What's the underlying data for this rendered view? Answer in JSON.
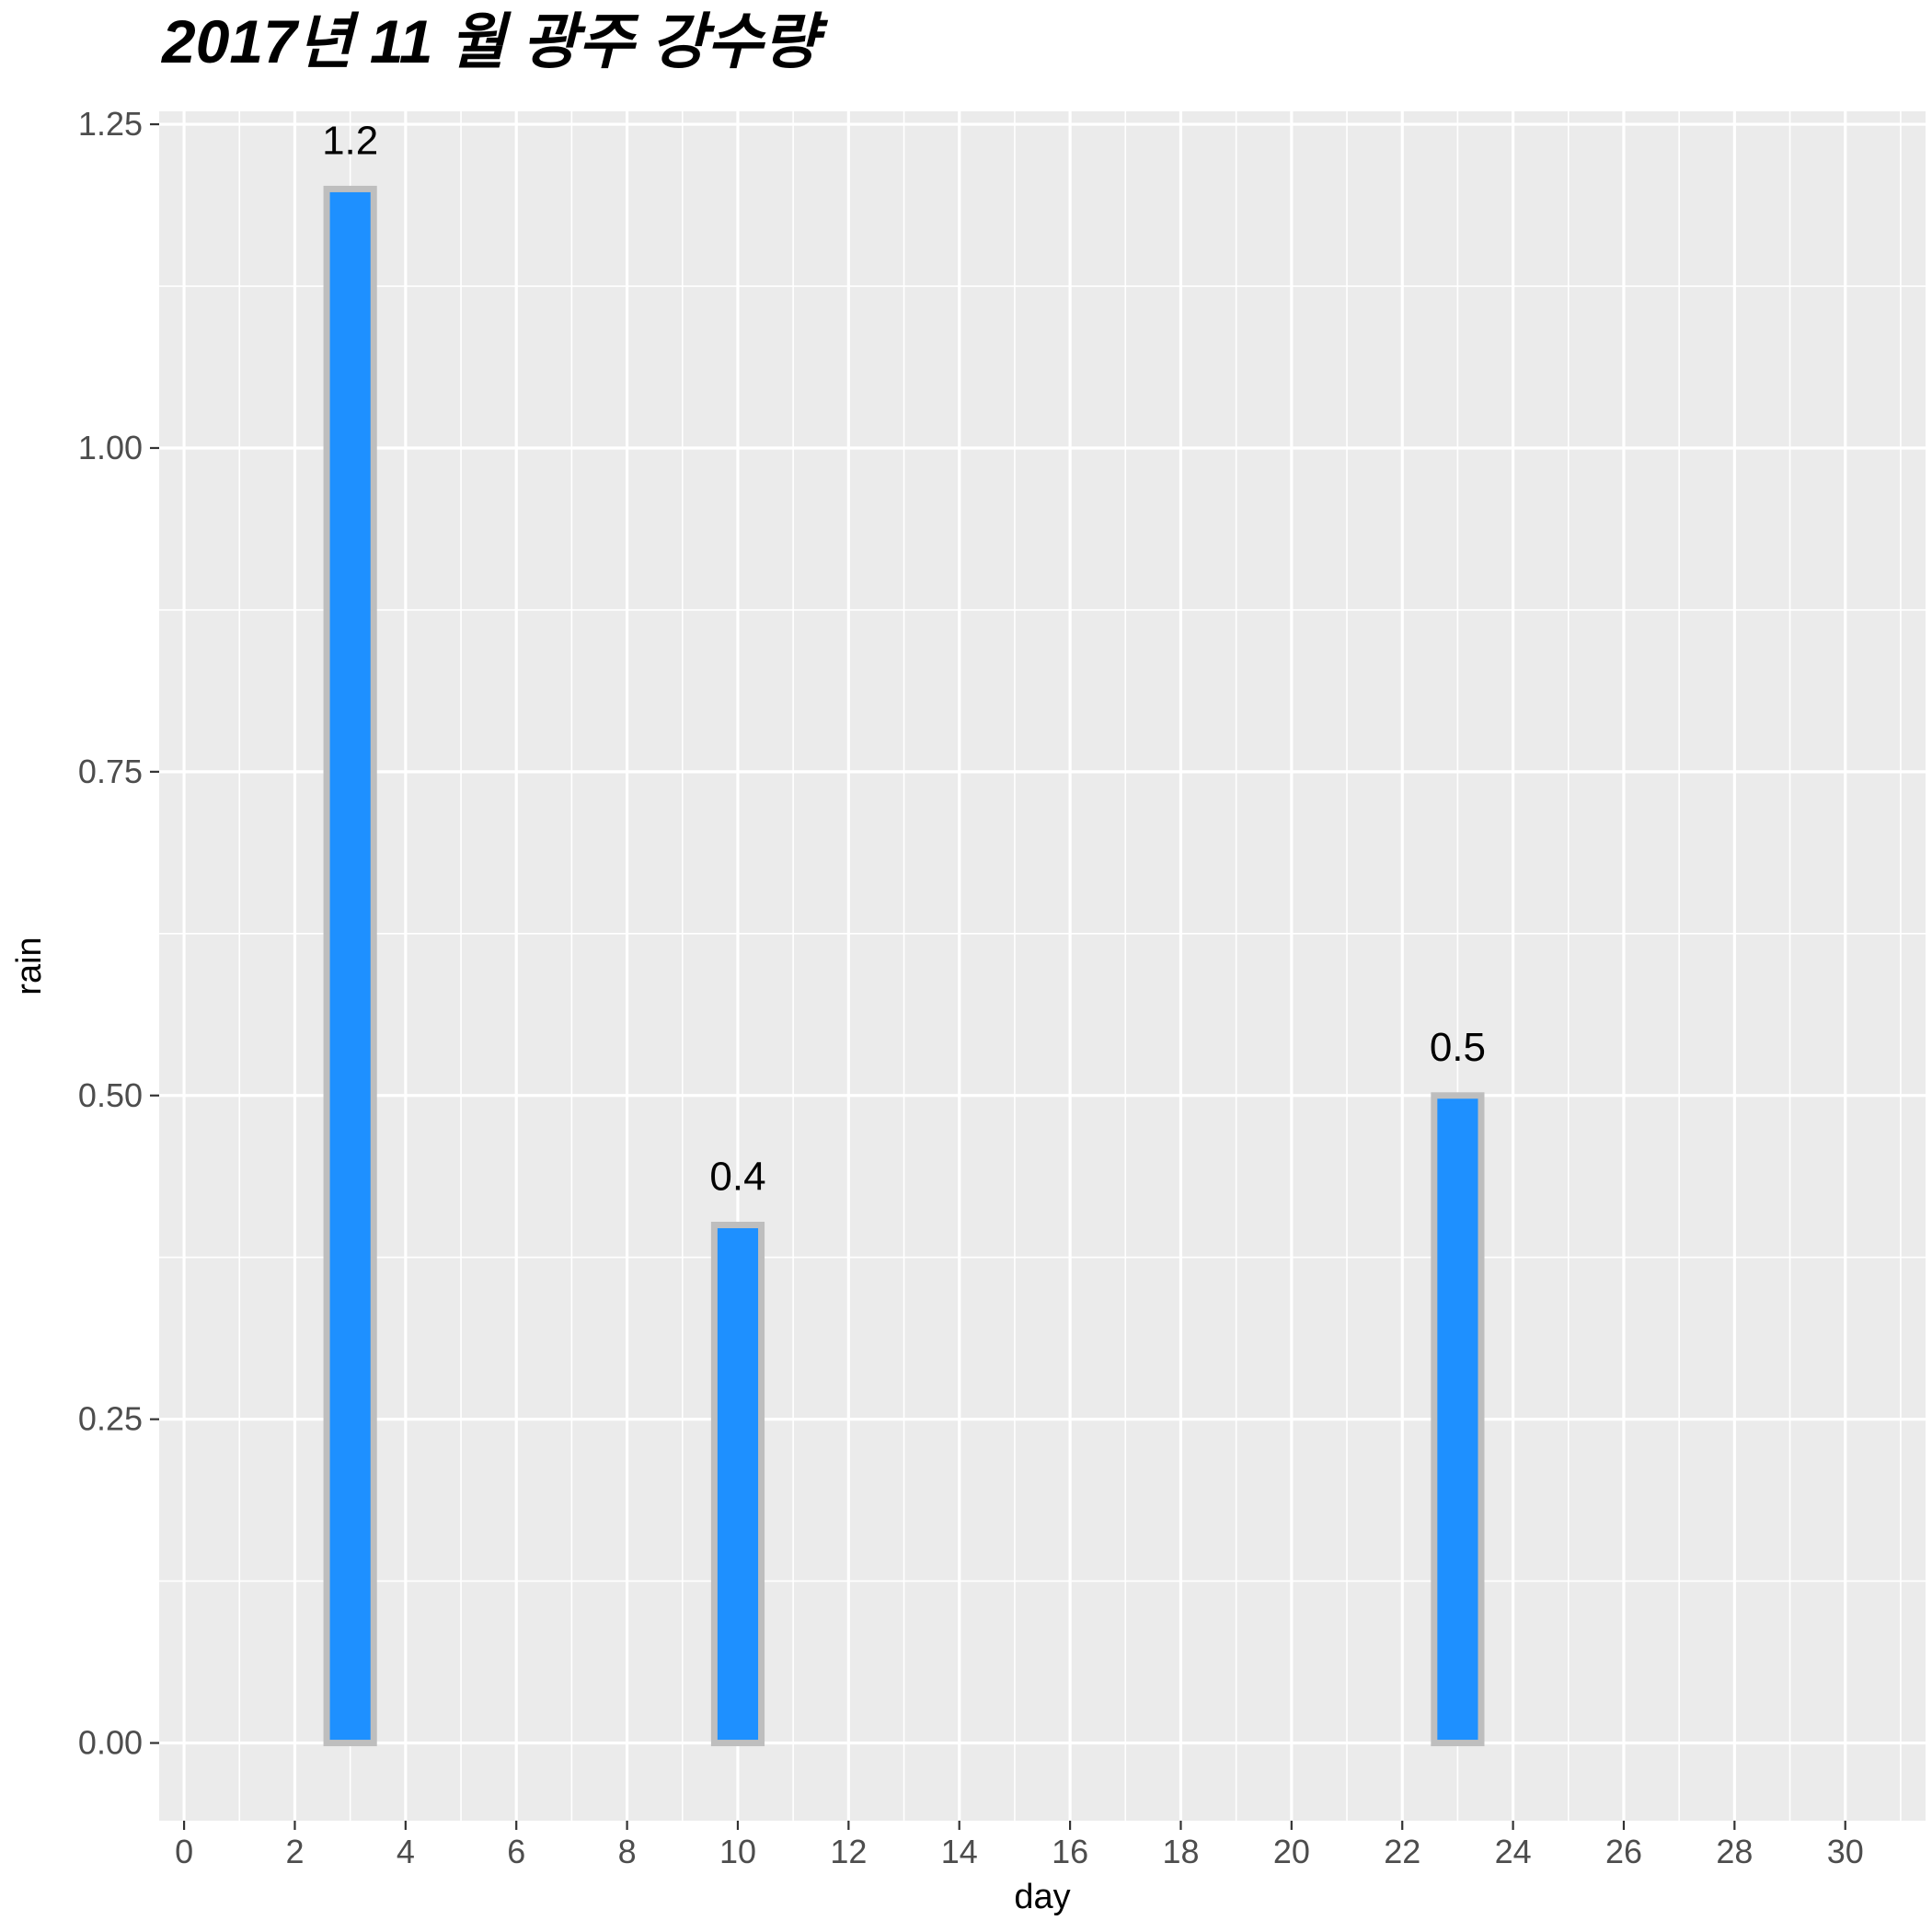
{
  "chart_data": {
    "type": "bar",
    "title": "2017년 11 월 광주 강수량",
    "xlabel": "day",
    "ylabel": "rain",
    "x": [
      3,
      10,
      23
    ],
    "values": [
      1.2,
      0.4,
      0.5
    ],
    "data_labels": [
      "1.2",
      "0.4",
      "0.5"
    ],
    "xlim": [
      -0.45,
      31.45
    ],
    "ylim": [
      -0.06,
      1.26
    ],
    "x_ticks": [
      0,
      2,
      4,
      6,
      8,
      10,
      12,
      14,
      16,
      18,
      20,
      22,
      24,
      26,
      28,
      30
    ],
    "x_tick_labels": [
      "0",
      "2",
      "4",
      "6",
      "8",
      "10",
      "12",
      "14",
      "16",
      "18",
      "20",
      "22",
      "24",
      "26",
      "28",
      "30"
    ],
    "y_ticks": [
      0,
      0.25,
      0.5,
      0.75,
      1.0,
      1.25
    ],
    "y_tick_labels": [
      "0.00",
      "0.25",
      "0.50",
      "0.75",
      "1.00",
      "1.25"
    ],
    "grid": true,
    "legend": "none",
    "colors": {
      "bar_fill": "#1E90FF",
      "bar_outline": "#BEBEBE",
      "panel_background": "#EBEBEB",
      "grid_line": "#FFFFFF",
      "tick_label": "#4D4D4D"
    }
  }
}
